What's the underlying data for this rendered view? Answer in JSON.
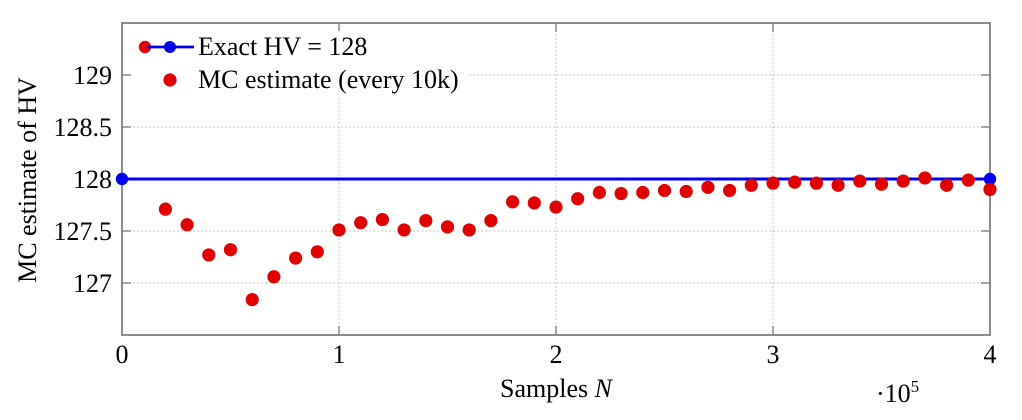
{
  "figure": {
    "background": "#ffffff"
  },
  "chart_data": {
    "type": "scatter",
    "title": "",
    "ylabel": "MC estimate of HV",
    "xlabel_prefix": "Samples ",
    "xlabel_symbol": "N",
    "x_exponent_base": "·10",
    "x_exponent_power": "5",
    "xlim": [
      0,
      400000
    ],
    "ylim": [
      126.5,
      129.5
    ],
    "x_ticks": {
      "values": [
        0,
        100000,
        200000,
        300000,
        400000
      ],
      "labels": [
        "0",
        "1",
        "2",
        "3",
        "4"
      ]
    },
    "y_ticks": {
      "values": [
        127,
        127.5,
        128,
        128.5,
        129
      ],
      "labels": [
        "127",
        "127.5",
        "128",
        "128.5",
        "129"
      ]
    },
    "grid": "dotted",
    "legend_position": "top-left",
    "colors": {
      "frame": "#666666",
      "tick": "#808080",
      "grid": "#c3c3c3",
      "text": "#000000",
      "background": "#ffffff"
    },
    "series": [
      {
        "name": "Exact HV = 128",
        "type": "line",
        "color": "#0000ee",
        "marker": "dot",
        "points": [
          [
            0,
            128
          ],
          [
            400000,
            128
          ]
        ]
      },
      {
        "name": "MC estimate (every 10k)",
        "type": "scatter",
        "color": "#e10000",
        "marker": "dot",
        "x": [
          20000,
          30000,
          40000,
          50000,
          60000,
          70000,
          80000,
          90000,
          100000,
          110000,
          120000,
          130000,
          140000,
          150000,
          160000,
          170000,
          180000,
          190000,
          200000,
          210000,
          220000,
          230000,
          240000,
          250000,
          260000,
          270000,
          280000,
          290000,
          300000,
          310000,
          320000,
          330000,
          340000,
          350000,
          360000,
          370000,
          380000,
          390000,
          400000
        ],
        "y": [
          127.71,
          127.56,
          127.27,
          127.32,
          126.84,
          127.06,
          127.24,
          127.3,
          127.51,
          127.58,
          127.61,
          127.51,
          127.6,
          127.54,
          127.51,
          127.6,
          127.78,
          127.77,
          127.73,
          127.81,
          127.87,
          127.86,
          127.87,
          127.89,
          127.88,
          127.92,
          127.89,
          127.94,
          127.96,
          127.97,
          127.96,
          127.94,
          127.98,
          127.95,
          127.98,
          128.01,
          127.94,
          127.99,
          127.9
        ]
      }
    ]
  }
}
